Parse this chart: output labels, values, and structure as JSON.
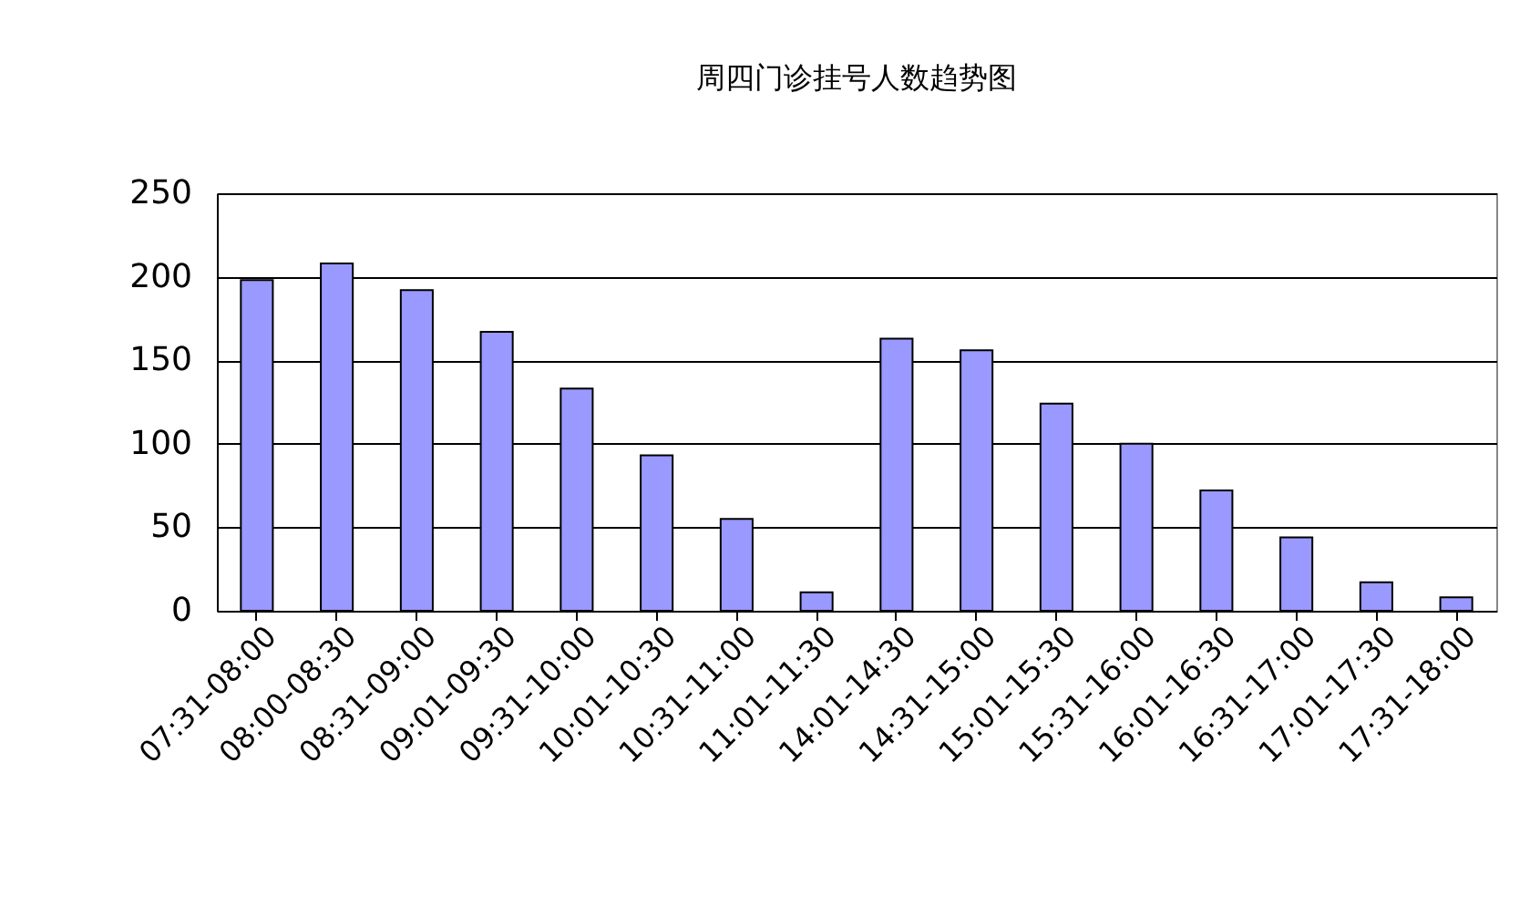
{
  "chart_data": {
    "type": "bar",
    "title": "周四门诊挂号人数趋势图",
    "categories": [
      "07:31-08:00",
      "08:00-08:30",
      "08:31-09:00",
      "09:01-09:30",
      "09:31-10:00",
      "10:01-10:30",
      "10:31-11:00",
      "11:01-11:30",
      "14:01-14:30",
      "14:31-15:00",
      "15:01-15:30",
      "15:31-16:00",
      "16:01-16:30",
      "16:31-17:00",
      "17:01-17:30",
      "17:31-18:00"
    ],
    "values": [
      198,
      208,
      192,
      167,
      133,
      93,
      55,
      11,
      163,
      156,
      124,
      100,
      72,
      44,
      17,
      8
    ],
    "color": "#9999ff",
    "ylim": [
      0,
      250
    ],
    "yticks": [
      0,
      50,
      100,
      150,
      200,
      250
    ],
    "grid": "y"
  }
}
